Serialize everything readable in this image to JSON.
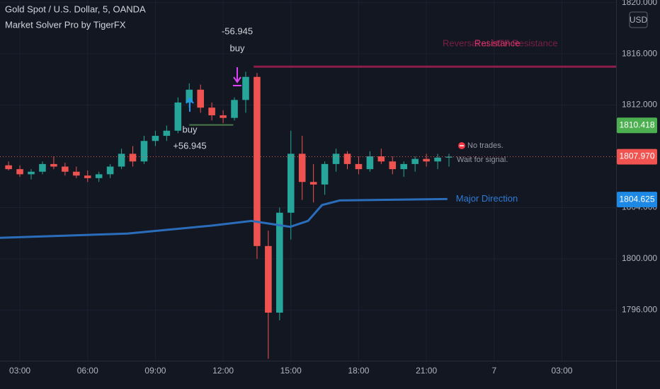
{
  "chart_data": {
    "type": "candlestick",
    "title": "Gold Spot / U.S. Dollar, 5, OANDA",
    "subtitle": "Market Solver Pro by TigerFX",
    "currency": "USD",
    "xlim": [
      2.12,
      29.4
    ],
    "ylim": [
      1792.05,
      1820.2
    ],
    "xticks": [
      {
        "value": 3,
        "label": "03:00"
      },
      {
        "value": 6,
        "label": "06:00"
      },
      {
        "value": 9,
        "label": "09:00"
      },
      {
        "value": 12,
        "label": "12:00"
      },
      {
        "value": 15,
        "label": "15:00"
      },
      {
        "value": 18,
        "label": "18:00"
      },
      {
        "value": 21,
        "label": "21:00"
      },
      {
        "value": 24,
        "label": "7"
      },
      {
        "value": 27,
        "label": "03:00"
      }
    ],
    "yticks": [
      {
        "value": 1796,
        "label": "1796.000"
      },
      {
        "value": 1800,
        "label": "1800.000"
      },
      {
        "value": 1804,
        "label": "1804.000"
      },
      {
        "value": 1812,
        "label": "1812.000"
      },
      {
        "value": 1816,
        "label": "1816.000"
      },
      {
        "value": 1820,
        "label": "1820.000"
      }
    ],
    "grid": true,
    "up_color": "#26a69a",
    "down_color": "#ef5350",
    "x": [
      2.5,
      3,
      3.5,
      4,
      4.5,
      5,
      5.5,
      6,
      6.5,
      7,
      7.5,
      8,
      8.5,
      9,
      9.5,
      10,
      10.5,
      11,
      11.5,
      12,
      12.5,
      13,
      13.5,
      14,
      14.5,
      15,
      15.5,
      16,
      16.5,
      17,
      17.5,
      18,
      18.5,
      19,
      19.5,
      20,
      20.5,
      21,
      21.5,
      22
    ],
    "open": [
      1807.3,
      1807.0,
      1806.6,
      1806.8,
      1807.4,
      1807.2,
      1806.8,
      1806.5,
      1806.3,
      1806.6,
      1807.2,
      1808.2,
      1807.6,
      1809.2,
      1809.6,
      1810.0,
      1812.2,
      1813.2,
      1811.8,
      1811.2,
      1811.0,
      1812.4,
      1814.2,
      1801.0,
      1795.8,
      1803.6,
      1808.2,
      1806.0,
      1805.8,
      1807.4,
      1808.2,
      1807.4,
      1807.0,
      1808.0,
      1807.6,
      1807.0,
      1807.4,
      1807.8,
      1807.6,
      1807.9
    ],
    "high": [
      1807.6,
      1807.3,
      1807.0,
      1807.6,
      1808.0,
      1807.5,
      1807.2,
      1806.9,
      1806.8,
      1807.4,
      1808.6,
      1808.8,
      1809.6,
      1810.0,
      1810.4,
      1812.6,
      1813.7,
      1813.6,
      1812.2,
      1811.6,
      1812.6,
      1814.6,
      1814.5,
      1802.2,
      1804.0,
      1810.0,
      1809.6,
      1807.4,
      1807.6,
      1808.6,
      1808.4,
      1808.0,
      1808.4,
      1808.6,
      1808.0,
      1807.6,
      1808.0,
      1808.2,
      1808.2,
      1808.2
    ],
    "low": [
      1806.9,
      1806.4,
      1806.2,
      1806.6,
      1807.0,
      1806.5,
      1806.3,
      1806.0,
      1806.0,
      1806.3,
      1807.0,
      1807.2,
      1807.4,
      1808.8,
      1809.2,
      1809.8,
      1811.8,
      1811.4,
      1810.8,
      1810.6,
      1810.8,
      1811.4,
      1800.0,
      1792.2,
      1795.2,
      1801.5,
      1804.6,
      1804.4,
      1805.0,
      1806.8,
      1807.0,
      1806.6,
      1806.8,
      1807.4,
      1806.6,
      1806.4,
      1806.8,
      1807.2,
      1807.0,
      1807.2
    ],
    "close": [
      1807.0,
      1806.6,
      1806.8,
      1807.4,
      1807.2,
      1806.8,
      1806.5,
      1806.3,
      1806.6,
      1807.2,
      1808.2,
      1807.6,
      1809.2,
      1809.6,
      1810.0,
      1812.2,
      1813.2,
      1811.8,
      1811.2,
      1811.0,
      1812.4,
      1814.2,
      1801.0,
      1795.8,
      1803.6,
      1808.2,
      1806.0,
      1805.8,
      1807.4,
      1808.2,
      1807.4,
      1807.0,
      1808.0,
      1807.6,
      1807.0,
      1807.4,
      1807.8,
      1807.6,
      1807.9,
      1807.97
    ],
    "major_direction": {
      "name": "Major Direction",
      "color": "#2a6ebb",
      "x": [
        2.12,
        7.76,
        11.52,
        13.25,
        14.03,
        14.97,
        15.76,
        16.38,
        17.17,
        21.93
      ],
      "values": [
        1801.64,
        1801.97,
        1802.6,
        1802.96,
        1802.75,
        1802.5,
        1802.96,
        1804.2,
        1804.56,
        1804.67
      ]
    },
    "resistance": {
      "label": "Resistance",
      "note": "Reversal at HTF Resistance",
      "color": "#8b1e4a",
      "value": 1815.0,
      "x_start": 13.35
    },
    "support_segment": {
      "value": 1810.45,
      "x": [
        10.5,
        12.45
      ],
      "color": "#4a7a4a"
    },
    "trades": [
      {
        "side": "buy",
        "result": "+56.945"
      },
      {
        "side": "buy",
        "result": "-56.945"
      }
    ],
    "status": [
      "No trades.",
      "Wait for signal."
    ],
    "price_tags": [
      {
        "value": 1810.418,
        "color": "#4caf50"
      },
      {
        "value": 1807.97,
        "label": "1807.970",
        "color": "#f05350"
      },
      {
        "value": 1804.625,
        "color": "#1e88e5"
      }
    ]
  }
}
